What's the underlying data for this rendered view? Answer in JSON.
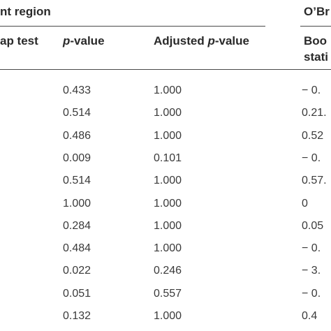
{
  "table": {
    "group_headers": {
      "left": "nt region",
      "right": "O’Br"
    },
    "column_headers": {
      "bootstrap": "ap test",
      "pvalue_prefix": "p",
      "pvalue_suffix": "-value",
      "adjusted_prefix": "Adjusted ",
      "adjusted_italic": "p",
      "adjusted_suffix": "-value",
      "right_line1": "Boo",
      "right_line2": "stati"
    },
    "rows": [
      {
        "pvalue": "0.433",
        "adjusted": "1.000",
        "right": "− 0."
      },
      {
        "pvalue": "0.514",
        "adjusted": "1.000",
        "right": "0.21."
      },
      {
        "pvalue": "0.486",
        "adjusted": "1.000",
        "right": "0.52"
      },
      {
        "pvalue": "0.009",
        "adjusted": "0.101",
        "right": "− 0."
      },
      {
        "pvalue": "0.514",
        "adjusted": "1.000",
        "right": "0.57."
      },
      {
        "pvalue": "1.000",
        "adjusted": "1.000",
        "right": "0"
      },
      {
        "pvalue": "0.284",
        "adjusted": "1.000",
        "right": "0.05"
      },
      {
        "pvalue": "0.484",
        "adjusted": "1.000",
        "right": "− 0."
      },
      {
        "pvalue": "0.022",
        "adjusted": "0.246",
        "right": "− 3."
      },
      {
        "pvalue": "0.051",
        "adjusted": "0.557",
        "right": "− 0."
      },
      {
        "pvalue": "0.132",
        "adjusted": "1.000",
        "right": "0.4"
      }
    ]
  }
}
